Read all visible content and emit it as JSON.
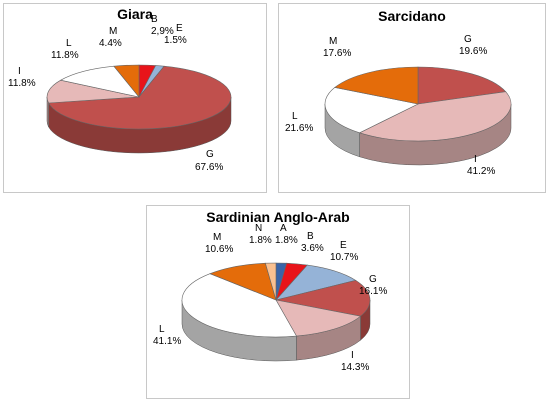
{
  "colors": {
    "A": "#3a64a8",
    "B": "#e8141a",
    "E": "#95b3d7",
    "G": "#c0504d",
    "I": "#e6b9b8",
    "L": "#ffffff",
    "M": "#e46c0a",
    "N": "#fac090"
  },
  "chart_data": [
    {
      "type": "pie",
      "title": "Giara",
      "slices": [
        {
          "label": "B",
          "value": 2.9,
          "text": "2,9%"
        },
        {
          "label": "E",
          "value": 1.5,
          "text": "1.5%"
        },
        {
          "label": "G",
          "value": 67.6,
          "text": "67.6%"
        },
        {
          "label": "I",
          "value": 11.8,
          "text": "11.8%"
        },
        {
          "label": "L",
          "value": 11.8,
          "text": "11.8%"
        },
        {
          "label": "M",
          "value": 4.4,
          "text": "4.4%"
        }
      ]
    },
    {
      "type": "pie",
      "title": "Sarcidano",
      "slices": [
        {
          "label": "G",
          "value": 19.6,
          "text": "19.6%"
        },
        {
          "label": "I",
          "value": 41.2,
          "text": "41.2%"
        },
        {
          "label": "L",
          "value": 21.6,
          "text": "21.6%"
        },
        {
          "label": "M",
          "value": 17.6,
          "text": "17.6%"
        }
      ]
    },
    {
      "type": "pie",
      "title": "Sardinian Anglo-Arab",
      "slices": [
        {
          "label": "A",
          "value": 1.8,
          "text": "1.8%"
        },
        {
          "label": "B",
          "value": 3.6,
          "text": "3.6%"
        },
        {
          "label": "E",
          "value": 10.7,
          "text": "10.7%"
        },
        {
          "label": "G",
          "value": 16.1,
          "text": "16.1%"
        },
        {
          "label": "I",
          "value": 14.3,
          "text": "14.3%"
        },
        {
          "label": "L",
          "value": 41.1,
          "text": "41.1%"
        },
        {
          "label": "M",
          "value": 10.6,
          "text": "10.6%"
        },
        {
          "label": "N",
          "value": 1.8,
          "text": "1.8%"
        }
      ]
    }
  ]
}
